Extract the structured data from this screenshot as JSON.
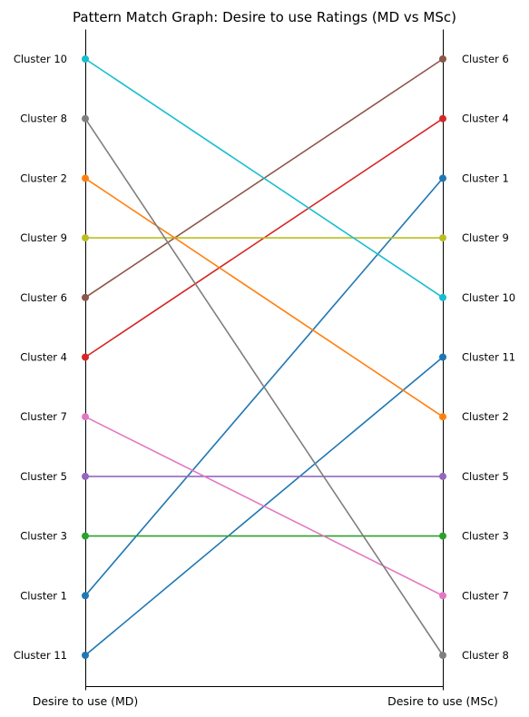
{
  "chart_data": {
    "type": "line",
    "title": "Pattern Match Graph: Desire to use Ratings (MD vs MSc)",
    "x_categories": [
      "Desire to use (MD)",
      "Desire to use (MSc)"
    ],
    "left_labels": [
      "Cluster 10",
      "Cluster 8",
      "Cluster 2",
      "Cluster 9",
      "Cluster 6",
      "Cluster 4",
      "Cluster 7",
      "Cluster 5",
      "Cluster 3",
      "Cluster 1",
      "Cluster 11"
    ],
    "right_labels": [
      "Cluster 6",
      "Cluster 4",
      "Cluster 1",
      "Cluster 9",
      "Cluster 10",
      "Cluster 11",
      "Cluster 2",
      "Cluster 5",
      "Cluster 3",
      "Cluster 7",
      "Cluster 8"
    ],
    "rank_range": [
      1,
      11
    ],
    "grid": false,
    "series": [
      {
        "name": "Cluster 11",
        "left_rank": 11,
        "right_rank": 6,
        "color": "#1f77b4"
      },
      {
        "name": "Cluster 1",
        "left_rank": 10,
        "right_rank": 3,
        "color": "#1f77b4"
      },
      {
        "name": "Cluster 3",
        "left_rank": 9,
        "right_rank": 9,
        "color": "#2ca02c"
      },
      {
        "name": "Cluster 5",
        "left_rank": 8,
        "right_rank": 8,
        "color": "#9467bd"
      },
      {
        "name": "Cluster 7",
        "left_rank": 7,
        "right_rank": 10,
        "color": "#e377c2"
      },
      {
        "name": "Cluster 4",
        "left_rank": 6,
        "right_rank": 2,
        "color": "#d62728"
      },
      {
        "name": "Cluster 6",
        "left_rank": 5,
        "right_rank": 1,
        "color": "#8c564b"
      },
      {
        "name": "Cluster 9",
        "left_rank": 4,
        "right_rank": 4,
        "color": "#bcbd22"
      },
      {
        "name": "Cluster 2",
        "left_rank": 3,
        "right_rank": 7,
        "color": "#ff7f0e"
      },
      {
        "name": "Cluster 8",
        "left_rank": 2,
        "right_rank": 11,
        "color": "#7f7f7f"
      },
      {
        "name": "Cluster 10",
        "left_rank": 1,
        "right_rank": 5,
        "color": "#17becf"
      }
    ]
  }
}
